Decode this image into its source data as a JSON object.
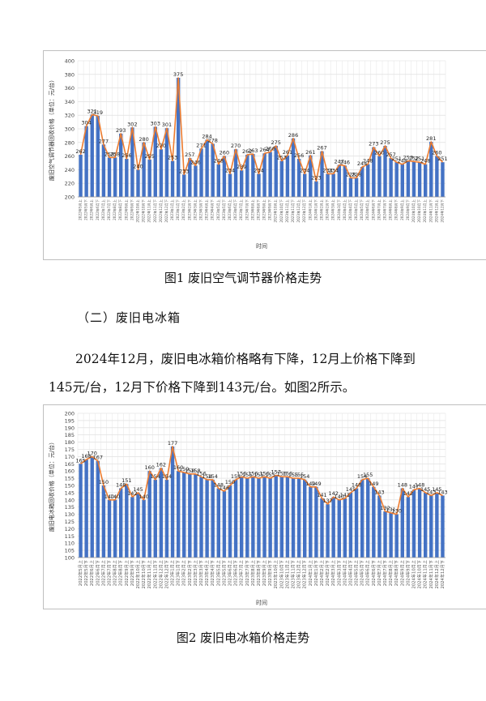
{
  "chart1": {
    "caption": "图1  废旧空气调节器价格走势",
    "chart_data": {
      "type": "bar",
      "ylabel": "废旧空气调节器回收价格（单位：元/台）",
      "xlabel": "时间",
      "ylim": [
        200,
        400
      ],
      "yticks": [
        200,
        220,
        240,
        260,
        280,
        300,
        320,
        340,
        360,
        380,
        400
      ],
      "categories": [
        "2022年5月上",
        "2022年5月下",
        "2022年6月上",
        "2022年6月下",
        "2022年7月上",
        "2022年7月下",
        "2022年8月上",
        "2022年8月下",
        "2022年9月上",
        "2022年9月下",
        "2022年10月上",
        "2022年10月下",
        "2022年11月上",
        "2022年11月下",
        "2022年12月上",
        "2022年12月下",
        "2023年1月上",
        "2023年1月下",
        "2023年2月上",
        "2023年2月下",
        "2023年3月上",
        "2023年3月下",
        "2023年4月上",
        "2023年4月下",
        "2023年5月上",
        "2023年5月下",
        "2023年6月上",
        "2023年6月下",
        "2023年7月上",
        "2023年7月下",
        "2023年8月上",
        "2023年8月下",
        "2023年9月上",
        "2023年9月下",
        "2023年10月上",
        "2023年10月下",
        "2023年11月上",
        "2023年11月下",
        "2023年12月上",
        "2023年12月下",
        "2024年1月上",
        "2024年1月下",
        "2024年2月上",
        "2024年2月下",
        "2024年3月上",
        "2024年3月下",
        "2024年4月上",
        "2024年4月下",
        "2024年5月上",
        "2024年5月下",
        "2024年6月上",
        "2024年6月下",
        "2024年7月上",
        "2024年7月下",
        "2024年8月上",
        "2024年8月下",
        "2024年9月上",
        "2024年9月下",
        "2024年10月上",
        "2024年10月下",
        "2024年11月上",
        "2024年11月下",
        "2024年12月上",
        "2024年12月下"
      ],
      "values": [
        262,
        304,
        321,
        319,
        277,
        258,
        258,
        293,
        256,
        302,
        240,
        280,
        255,
        303,
        270,
        301,
        253,
        375,
        233,
        257,
        246,
        271,
        284,
        278,
        248,
        260,
        234,
        270,
        239,
        262,
        263,
        234,
        264,
        266,
        275,
        253,
        261,
        286,
        256,
        234,
        261,
        223,
        267,
        234,
        234,
        247,
        246,
        228,
        228,
        244,
        248,
        273,
        260,
        275,
        257,
        251,
        248,
        253,
        252,
        251,
        248,
        281,
        260,
        251
      ]
    }
  },
  "section_heading": "（二）废旧电冰箱",
  "paragraph": {
    "line1": "2024年12月，废旧电冰箱价格略有下降，12月上价格下降到",
    "line2": "145元/台，12月下价格下降到143元/台。如图2所示。"
  },
  "chart2": {
    "caption": "图2  废旧电冰箱价格走势",
    "chart_data": {
      "type": "bar",
      "ylabel": "废旧电冰箱回收价格（单位：元/台）",
      "xlabel": "时间",
      "ylim": [
        100,
        200
      ],
      "yticks": [
        100,
        105,
        110,
        115,
        120,
        125,
        130,
        135,
        140,
        145,
        150,
        155,
        160,
        165,
        170,
        175,
        180,
        185,
        190,
        195,
        200
      ],
      "categories": [
        "2022年5月上",
        "2022年5月下",
        "2022年6月上",
        "2022年6月下",
        "2022年7月上",
        "2022年7月下",
        "2022年8月上",
        "2022年8月下",
        "2022年9月上",
        "2022年9月下",
        "2022年10月上",
        "2022年10月下",
        "2022年11月上",
        "2022年11月下",
        "2022年12月上",
        "2022年12月下",
        "2023年1月上",
        "2023年1月下",
        "2023年2月上",
        "2023年2月下",
        "2023年3月上",
        "2023年3月下",
        "2023年4月上",
        "2023年4月下",
        "2023年5月上",
        "2023年5月下",
        "2023年6月上",
        "2023年6月下",
        "2023年7月上",
        "2023年7月下",
        "2023年8月上",
        "2023年8月下",
        "2023年9月上",
        "2023年9月下",
        "2023年10月上",
        "2023年10月下",
        "2023年11月上",
        "2023年11月下",
        "2023年12月上",
        "2023年12月下",
        "2024年1月上",
        "2024年1月下",
        "2024年2月上",
        "2024年2月下",
        "2024年3月上",
        "2024年3月下",
        "2024年4月上",
        "2024年4月下",
        "2024年5月上",
        "2024年5月下",
        "2024年6月上",
        "2024年6月下",
        "2024年7月上",
        "2024年7月下",
        "2024年8月上",
        "2024年8月下",
        "2024年9月上",
        "2024年9月下",
        "2024年10月上",
        "2024年10月下",
        "2024年11月上",
        "2024年11月下",
        "2024年12月上",
        "2024年12月下"
      ],
      "values": [
        165,
        168,
        170,
        167,
        150,
        140,
        140,
        148,
        151,
        142,
        145,
        140,
        160,
        154,
        162,
        154,
        177,
        160,
        159,
        158,
        158,
        156,
        154,
        154,
        148,
        146,
        150,
        154,
        156,
        155,
        156,
        155,
        156,
        155,
        157,
        156,
        156,
        155,
        155,
        154,
        149,
        149,
        141,
        137,
        142,
        140,
        141,
        145,
        148,
        154,
        155,
        149,
        143,
        132,
        131,
        130,
        148,
        142,
        147,
        148,
        145,
        143,
        145,
        143
      ],
      "point_labels": [
        "165",
        "168",
        "170",
        "167",
        "150",
        "140",
        "140",
        "148",
        "151",
        "142",
        "145",
        "140",
        "160",
        "154",
        "162",
        "154",
        "177",
        "160",
        "159",
        "158",
        "158",
        "156",
        "154",
        "154",
        "148",
        "146",
        "150",
        "154",
        "156",
        "155",
        "156",
        "155",
        "156",
        "155",
        "157",
        "156",
        "156",
        "155",
        "155",
        "154",
        "149",
        "149",
        "141",
        "137",
        "142",
        "140",
        "141",
        "145",
        "148",
        "154",
        "155",
        "149",
        "143",
        "132",
        "131",
        "130",
        "148",
        "142",
        "147",
        "148",
        "145",
        "143",
        "145",
        "143"
      ]
    }
  }
}
